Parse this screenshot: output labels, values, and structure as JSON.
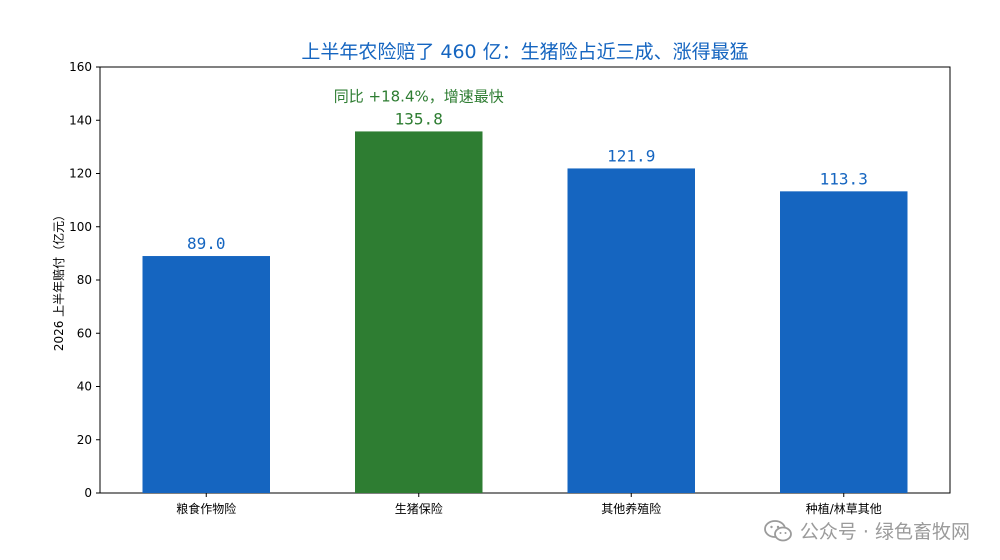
{
  "chart_data": {
    "type": "bar",
    "title": "上半年农险赔了 460 亿：生猪险占近三成、涨得最猛",
    "ylabel": "2026 上半年赔付（亿元）",
    "xlabel": "",
    "ylim": [
      0,
      160
    ],
    "yticks": [
      0,
      20,
      40,
      60,
      80,
      100,
      120,
      140,
      160
    ],
    "categories": [
      "粮食作物险",
      "生猪保险",
      "其他养殖险",
      "种植/林草其他"
    ],
    "values": [
      89.0,
      135.8,
      121.9,
      113.3
    ],
    "value_labels": [
      "89.0",
      "135.8",
      "121.9",
      "113.3"
    ],
    "colors": [
      "#1565c0",
      "#2e7d32",
      "#1565c0",
      "#1565c0"
    ],
    "annotation": {
      "text": "同比 +18.4%，增速最快",
      "category_index": 1,
      "color": "#2e7d32"
    },
    "title_color": "#1565c0",
    "grid": false
  },
  "watermark": {
    "text": "公众号 · 绿色畜牧网",
    "icon": "wechat-icon"
  }
}
